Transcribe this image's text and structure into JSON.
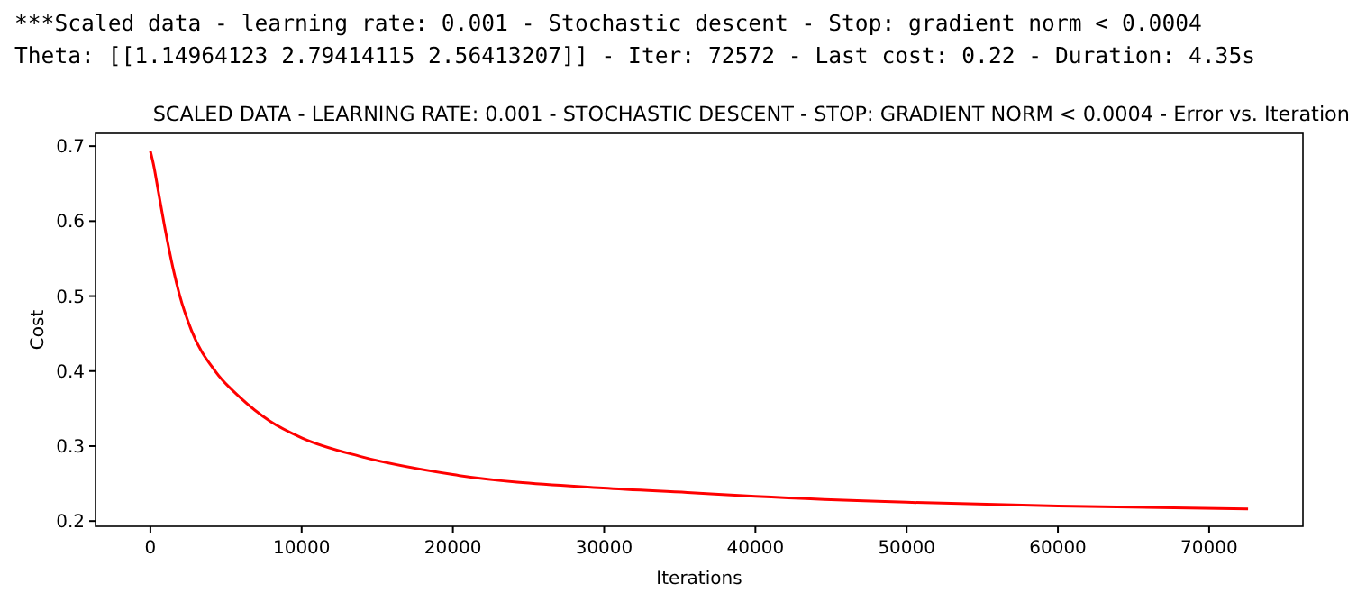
{
  "chart_data": {
    "type": "line",
    "title": "SCALED DATA - LEARNING RATE: 0.001 - STOCHASTIC DESCENT - STOP: GRADIENT NORM < 0.0004 - Error vs. Iteration",
    "xlabel": "Iterations",
    "ylabel": "Cost",
    "annotations": [
      "***Scaled data - learning rate: 0.001 - Stochastic descent - Stop: gradient norm < 0.0004",
      "Theta: [[1.14964123 2.79414115 2.56413207]] - Iter: 72572 - Last cost: 0.22 - Duration: 4.35s"
    ],
    "xlim": [
      -3629,
      76201
    ],
    "xticks": [
      0,
      10000,
      20000,
      30000,
      40000,
      50000,
      60000,
      70000
    ],
    "ylim": [
      0.193,
      0.717
    ],
    "yticks": [
      0.2,
      0.3,
      0.4,
      0.5,
      0.6,
      0.7
    ],
    "grid": false,
    "marker": "none",
    "line_style": "solid",
    "series": [
      {
        "color": "#ff0000",
        "x": [
          0,
          240,
          520,
          920,
          1520,
          1920,
          2720,
          4320,
          5920,
          7920,
          10000,
          13920,
          20000,
          29920,
          35500,
          40000,
          50000,
          60000,
          72572
        ],
        "values": [
          0.693,
          0.672,
          0.64,
          0.595,
          0.535,
          0.502,
          0.454,
          0.399,
          0.365,
          0.333,
          0.311,
          0.286,
          0.262,
          0.244,
          0.238,
          0.233,
          0.225,
          0.22,
          0.216
        ]
      }
    ]
  }
}
